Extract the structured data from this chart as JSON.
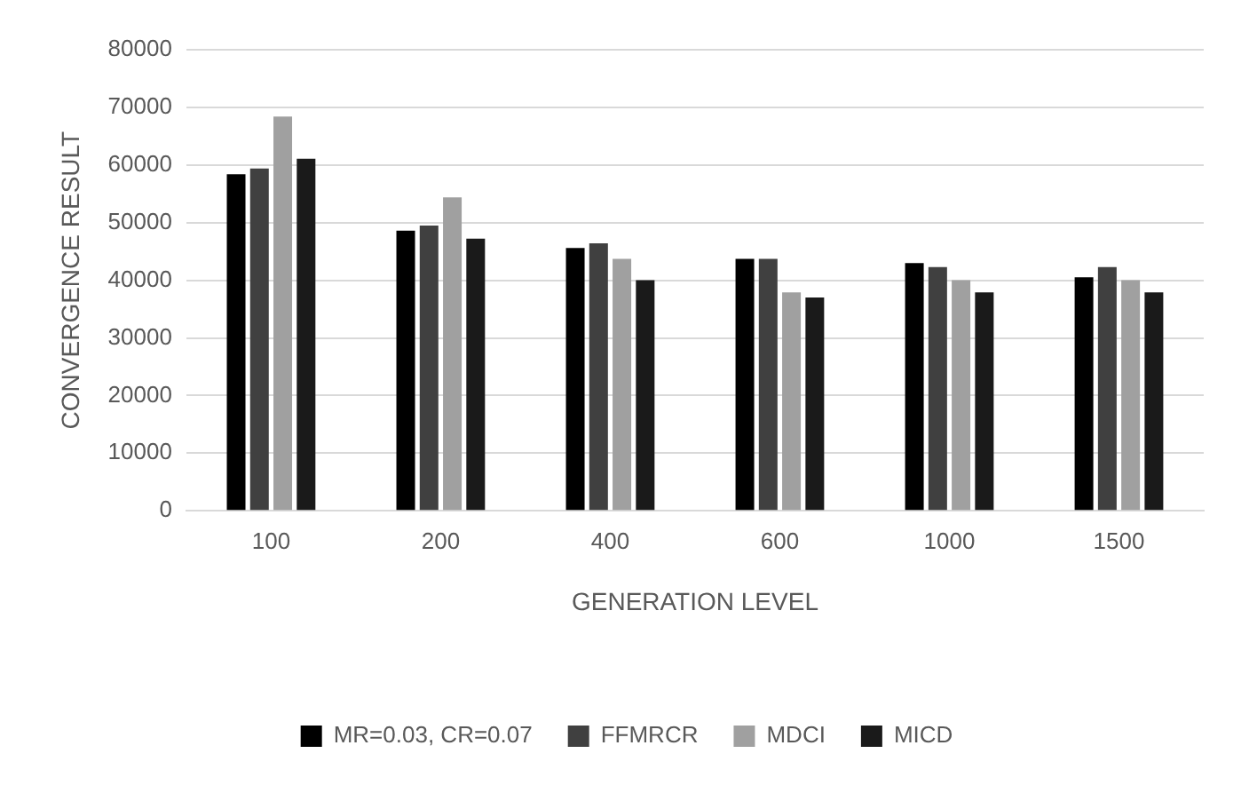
{
  "chart_data": {
    "type": "bar",
    "xlabel": "GENERATION LEVEL",
    "ylabel": "CONVERGENCE RESULT",
    "categories": [
      "100",
      "200",
      "400",
      "600",
      "1000",
      "1500"
    ],
    "series": [
      {
        "name": "MR=0.03, CR=0.07",
        "color": "#000000",
        "values": [
          58400,
          48600,
          45600,
          43700,
          43000,
          40500
        ]
      },
      {
        "name": "FFMRCR",
        "color": "#404040",
        "values": [
          59400,
          49500,
          46400,
          43700,
          42300,
          42300
        ]
      },
      {
        "name": "MDCI",
        "color": "#a0a0a0",
        "values": [
          68400,
          54400,
          43700,
          37900,
          40000,
          40000
        ]
      },
      {
        "name": "MICD",
        "color": "#1a1a1a",
        "values": [
          61100,
          47200,
          40000,
          37000,
          37900,
          37900
        ]
      }
    ],
    "ylim": [
      0,
      80000
    ],
    "yticks": [
      0,
      10000,
      20000,
      30000,
      40000,
      50000,
      60000,
      70000,
      80000
    ],
    "grid": "y",
    "legend": "bottom"
  }
}
